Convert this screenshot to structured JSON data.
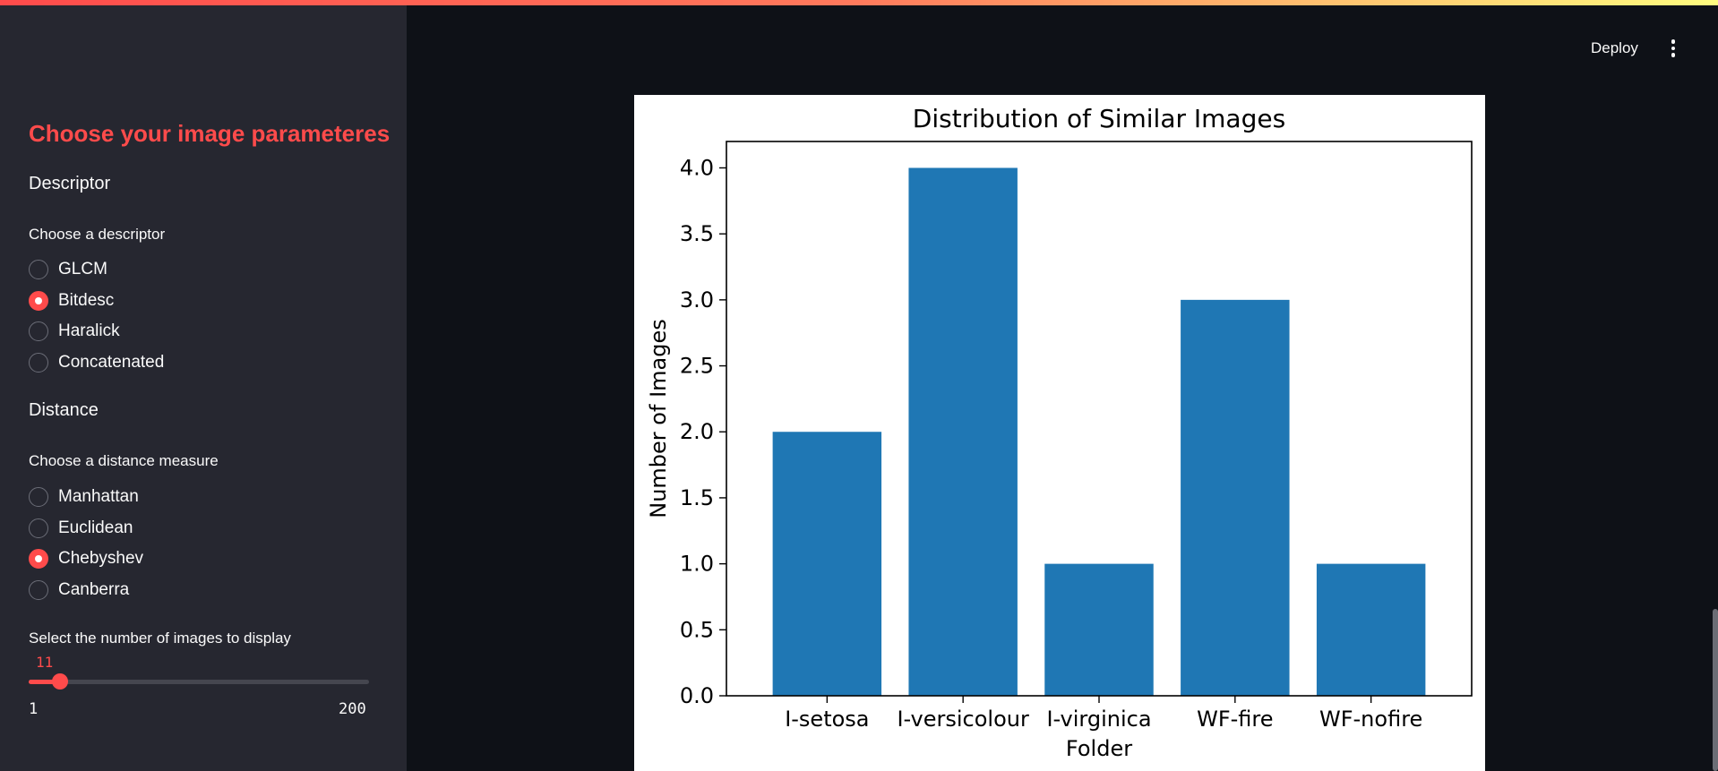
{
  "header": {
    "deploy_label": "Deploy",
    "menu_icon": "more-vertical-icon"
  },
  "colors": {
    "accent": "#ff4b4b",
    "sidebar_bg": "#262730",
    "main_bg": "#0e1117",
    "bar": "#1f77b4"
  },
  "sidebar": {
    "title": "Choose your image parameteres",
    "descriptor": {
      "heading": "Descriptor",
      "label": "Choose a descriptor",
      "options": [
        "GLCM",
        "Bitdesc",
        "Haralick",
        "Concatenated"
      ],
      "selected": "Bitdesc"
    },
    "distance": {
      "heading": "Distance",
      "label": "Choose a distance measure",
      "options": [
        "Manhattan",
        "Euclidean",
        "Chebyshev",
        "Canberra"
      ],
      "selected": "Chebyshev"
    },
    "slider": {
      "label": "Select the number of images to display",
      "value": 11,
      "value_text": "11",
      "min": 1,
      "max": 200,
      "min_text": "1",
      "max_text": "200"
    }
  },
  "chart_data": {
    "type": "bar",
    "title": "Distribution of Similar Images",
    "xlabel": "Folder",
    "ylabel": "Number of Images",
    "categories": [
      "I-setosa",
      "I-versicolour",
      "I-virginica",
      "WF-fire",
      "WF-nofire"
    ],
    "values": [
      2,
      4,
      1,
      3,
      1
    ],
    "ylim": [
      0,
      4.2
    ],
    "yticks": [
      0,
      0.5,
      1,
      1.5,
      2,
      2.5,
      3,
      3.5,
      4
    ],
    "ytick_labels": [
      "0.0",
      "0.5",
      "1.0",
      "1.5",
      "2.0",
      "2.5",
      "3.0",
      "3.5",
      "4.0"
    ],
    "grid": false
  }
}
